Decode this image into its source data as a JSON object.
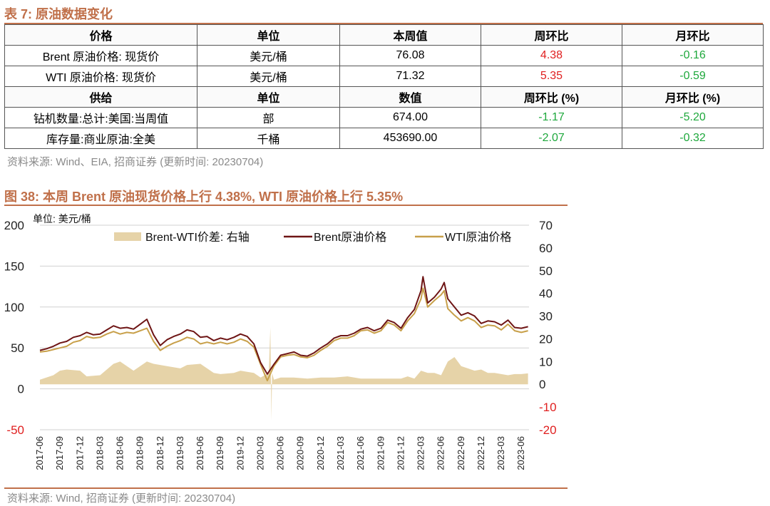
{
  "table_section": {
    "title": "表 7:  原油数据变化",
    "header1": [
      "价格",
      "单位",
      "本周值",
      "周环比",
      "月环比"
    ],
    "rows1": [
      {
        "name": "Brent 原油价格: 现货价",
        "unit": "美元/桶",
        "value": "76.08",
        "wow": "4.38",
        "mom": "-0.16"
      },
      {
        "name": "WTI 原油价格: 现货价",
        "unit": "美元/桶",
        "value": "71.32",
        "wow": "5.35",
        "mom": "-0.59"
      }
    ],
    "header2": [
      "供给",
      "单位",
      "数值",
      "周环比 (%)",
      "月环比 (%)"
    ],
    "rows2": [
      {
        "name": "钻机数量:总计:美国:当周值",
        "unit": "部",
        "value": "674.00",
        "wow": "-1.17",
        "mom": "-5.20"
      },
      {
        "name": "库存量:商业原油:全美",
        "unit": "千桶",
        "value": "453690.00",
        "wow": "-2.07",
        "mom": "-0.32"
      }
    ],
    "source": "资料来源: Wind、EIA, 招商证券 (更新时间: 20230704)",
    "colors": {
      "up": "#e02020",
      "down": "#1ea83c"
    }
  },
  "figure_section": {
    "title": "图 38:  本周 Brent 原油现货价格上行 4.38%, WTI 原油价格上行 5.35%",
    "source": "资料来源: Wind, 招商证券 (更新时间: 20230704)"
  },
  "chart_data": {
    "type": "line",
    "unit_label": "单位: 美元/桶",
    "x_tick_labels": [
      "2017-06",
      "2017-09",
      "2017-12",
      "2018-03",
      "2018-06",
      "2018-09",
      "2018-12",
      "2019-03",
      "2019-06",
      "2019-09",
      "2019-12",
      "2020-03",
      "2020-06",
      "2020-09",
      "2020-12",
      "2021-03",
      "2021-06",
      "2021-09",
      "2021-12",
      "2022-03",
      "2022-06",
      "2022-09",
      "2022-12",
      "2023-03",
      "2023-06"
    ],
    "y_left": {
      "min": -50,
      "max": 200,
      "ticks": [
        -50,
        0,
        50,
        100,
        150,
        200
      ]
    },
    "y_right": {
      "min": -20,
      "max": 70,
      "ticks": [
        -20,
        -10,
        0,
        10,
        20,
        30,
        40,
        50,
        60,
        70
      ]
    },
    "grid": "horizontal",
    "legend_placement": "top",
    "series": [
      {
        "name": "Brent-WTI价差: 右轴",
        "kind": "area",
        "axis": "right",
        "color": "#e6d3a8",
        "points": [
          [
            "2017-06",
            2
          ],
          [
            "2017-08",
            4
          ],
          [
            "2017-09",
            6
          ],
          [
            "2017-10",
            6.5
          ],
          [
            "2017-12",
            6
          ],
          [
            "2018-01",
            3.5
          ],
          [
            "2018-03",
            4
          ],
          [
            "2018-05",
            9
          ],
          [
            "2018-06",
            10
          ],
          [
            "2018-08",
            6
          ],
          [
            "2018-10",
            10
          ],
          [
            "2018-11",
            9
          ],
          [
            "2018-12",
            8.5
          ],
          [
            "2019-01",
            8
          ],
          [
            "2019-03",
            7
          ],
          [
            "2019-04",
            8.5
          ],
          [
            "2019-06",
            9
          ],
          [
            "2019-08",
            5
          ],
          [
            "2019-09",
            4.5
          ],
          [
            "2019-11",
            5
          ],
          [
            "2019-12",
            6
          ],
          [
            "2020-01",
            5.5
          ],
          [
            "2020-02",
            5
          ],
          [
            "2020-03",
            3
          ],
          [
            "2020-04-08",
            5
          ],
          [
            "2020-04-15",
            25
          ],
          [
            "2020-04-20",
            -16
          ],
          [
            "2020-04-23",
            5
          ],
          [
            "2020-05",
            2
          ],
          [
            "2020-06",
            3
          ],
          [
            "2020-08",
            3
          ],
          [
            "2020-10",
            2.5
          ],
          [
            "2020-12",
            3
          ],
          [
            "2021-02",
            3
          ],
          [
            "2021-04",
            3.5
          ],
          [
            "2021-06",
            2.5
          ],
          [
            "2021-08",
            2.5
          ],
          [
            "2021-10",
            2.5
          ],
          [
            "2021-12",
            2.5
          ],
          [
            "2022-01",
            3.5
          ],
          [
            "2022-02",
            2.5
          ],
          [
            "2022-03",
            6
          ],
          [
            "2022-04",
            5
          ],
          [
            "2022-05",
            5
          ],
          [
            "2022-06",
            4
          ],
          [
            "2022-07",
            10
          ],
          [
            "2022-08",
            12
          ],
          [
            "2022-09",
            8
          ],
          [
            "2022-10",
            7
          ],
          [
            "2022-11",
            6
          ],
          [
            "2022-12",
            6.5
          ],
          [
            "2023-01",
            5
          ],
          [
            "2023-02",
            5
          ],
          [
            "2023-03",
            4.5
          ],
          [
            "2023-04",
            4
          ],
          [
            "2023-05",
            4.5
          ],
          [
            "2023-06",
            4.5
          ],
          [
            "2023-07",
            4.8
          ]
        ]
      },
      {
        "name": "Brent原油价格",
        "kind": "line",
        "axis": "left",
        "color": "#6e1515",
        "points": [
          [
            "2017-06",
            47
          ],
          [
            "2017-07",
            49
          ],
          [
            "2017-08",
            52
          ],
          [
            "2017-09",
            56
          ],
          [
            "2017-10",
            58
          ],
          [
            "2017-11",
            63
          ],
          [
            "2017-12",
            65
          ],
          [
            "2018-01",
            69
          ],
          [
            "2018-02",
            66
          ],
          [
            "2018-03",
            67
          ],
          [
            "2018-04",
            72
          ],
          [
            "2018-05",
            77
          ],
          [
            "2018-06",
            74
          ],
          [
            "2018-07",
            75
          ],
          [
            "2018-08",
            73
          ],
          [
            "2018-09",
            79
          ],
          [
            "2018-10",
            85
          ],
          [
            "2018-11",
            66
          ],
          [
            "2018-12",
            53
          ],
          [
            "2019-01",
            60
          ],
          [
            "2019-02",
            64
          ],
          [
            "2019-03",
            67
          ],
          [
            "2019-04",
            72
          ],
          [
            "2019-05",
            70
          ],
          [
            "2019-06",
            63
          ],
          [
            "2019-07",
            64
          ],
          [
            "2019-08",
            59
          ],
          [
            "2019-09",
            62
          ],
          [
            "2019-10",
            60
          ],
          [
            "2019-11",
            63
          ],
          [
            "2019-12",
            67
          ],
          [
            "2020-01",
            64
          ],
          [
            "2020-02",
            55
          ],
          [
            "2020-03",
            32
          ],
          [
            "2020-04",
            18
          ],
          [
            "2020-05",
            30
          ],
          [
            "2020-06",
            41
          ],
          [
            "2020-07",
            43
          ],
          [
            "2020-08",
            45
          ],
          [
            "2020-09",
            41
          ],
          [
            "2020-10",
            40
          ],
          [
            "2020-11",
            44
          ],
          [
            "2020-12",
            50
          ],
          [
            "2021-01",
            55
          ],
          [
            "2021-02",
            62
          ],
          [
            "2021-03",
            65
          ],
          [
            "2021-04",
            65
          ],
          [
            "2021-05",
            68
          ],
          [
            "2021-06",
            73
          ],
          [
            "2021-07",
            75
          ],
          [
            "2021-08",
            71
          ],
          [
            "2021-09",
            74
          ],
          [
            "2021-10",
            84
          ],
          [
            "2021-11",
            81
          ],
          [
            "2021-12",
            74
          ],
          [
            "2022-01",
            87
          ],
          [
            "2022-02",
            97
          ],
          [
            "2022-03",
            120
          ],
          [
            "2022-03-10",
            137
          ],
          [
            "2022-04",
            105
          ],
          [
            "2022-05",
            112
          ],
          [
            "2022-06",
            122
          ],
          [
            "2022-06-15",
            130
          ],
          [
            "2022-07",
            110
          ],
          [
            "2022-08",
            100
          ],
          [
            "2022-09",
            90
          ],
          [
            "2022-10",
            93
          ],
          [
            "2022-11",
            89
          ],
          [
            "2022-12",
            80
          ],
          [
            "2023-01",
            83
          ],
          [
            "2023-02",
            82
          ],
          [
            "2023-03",
            78
          ],
          [
            "2023-04",
            84
          ],
          [
            "2023-05",
            75
          ],
          [
            "2023-06",
            74
          ],
          [
            "2023-07",
            76
          ]
        ]
      },
      {
        "name": "WTI原油价格",
        "kind": "line",
        "axis": "left",
        "color": "#c8a04a",
        "points": [
          [
            "2017-06",
            45
          ],
          [
            "2017-07",
            46
          ],
          [
            "2017-08",
            48
          ],
          [
            "2017-09",
            50
          ],
          [
            "2017-10",
            52
          ],
          [
            "2017-11",
            57
          ],
          [
            "2017-12",
            59
          ],
          [
            "2018-01",
            64
          ],
          [
            "2018-02",
            62
          ],
          [
            "2018-03",
            63
          ],
          [
            "2018-04",
            67
          ],
          [
            "2018-05",
            70
          ],
          [
            "2018-06",
            67
          ],
          [
            "2018-07",
            69
          ],
          [
            "2018-08",
            68
          ],
          [
            "2018-09",
            71
          ],
          [
            "2018-10",
            74
          ],
          [
            "2018-11",
            58
          ],
          [
            "2018-12",
            47
          ],
          [
            "2019-01",
            52
          ],
          [
            "2019-02",
            56
          ],
          [
            "2019-03",
            59
          ],
          [
            "2019-04",
            63
          ],
          [
            "2019-05",
            61
          ],
          [
            "2019-06",
            55
          ],
          [
            "2019-07",
            57
          ],
          [
            "2019-08",
            55
          ],
          [
            "2019-09",
            57
          ],
          [
            "2019-10",
            55
          ],
          [
            "2019-11",
            57
          ],
          [
            "2019-12",
            61
          ],
          [
            "2020-01",
            58
          ],
          [
            "2020-02",
            51
          ],
          [
            "2020-03",
            30
          ],
          [
            "2020-04",
            10
          ],
          [
            "2020-05",
            28
          ],
          [
            "2020-06",
            39
          ],
          [
            "2020-07",
            41
          ],
          [
            "2020-08",
            42
          ],
          [
            "2020-09",
            39
          ],
          [
            "2020-10",
            38
          ],
          [
            "2020-11",
            41
          ],
          [
            "2020-12",
            47
          ],
          [
            "2021-01",
            52
          ],
          [
            "2021-02",
            59
          ],
          [
            "2021-03",
            62
          ],
          [
            "2021-04",
            62
          ],
          [
            "2021-05",
            65
          ],
          [
            "2021-06",
            71
          ],
          [
            "2021-07",
            72
          ],
          [
            "2021-08",
            68
          ],
          [
            "2021-09",
            71
          ],
          [
            "2021-10",
            81
          ],
          [
            "2021-11",
            78
          ],
          [
            "2021-12",
            71
          ],
          [
            "2022-01",
            83
          ],
          [
            "2022-02",
            92
          ],
          [
            "2022-03",
            110
          ],
          [
            "2022-03-10",
            123
          ],
          [
            "2022-04",
            100
          ],
          [
            "2022-05",
            108
          ],
          [
            "2022-06",
            115
          ],
          [
            "2022-06-15",
            120
          ],
          [
            "2022-07",
            98
          ],
          [
            "2022-08",
            90
          ],
          [
            "2022-09",
            83
          ],
          [
            "2022-10",
            87
          ],
          [
            "2022-11",
            83
          ],
          [
            "2022-12",
            75
          ],
          [
            "2023-01",
            78
          ],
          [
            "2023-02",
            77
          ],
          [
            "2023-03",
            72
          ],
          [
            "2023-04",
            79
          ],
          [
            "2023-05",
            71
          ],
          [
            "2023-06",
            69
          ],
          [
            "2023-07",
            71
          ]
        ]
      }
    ]
  }
}
